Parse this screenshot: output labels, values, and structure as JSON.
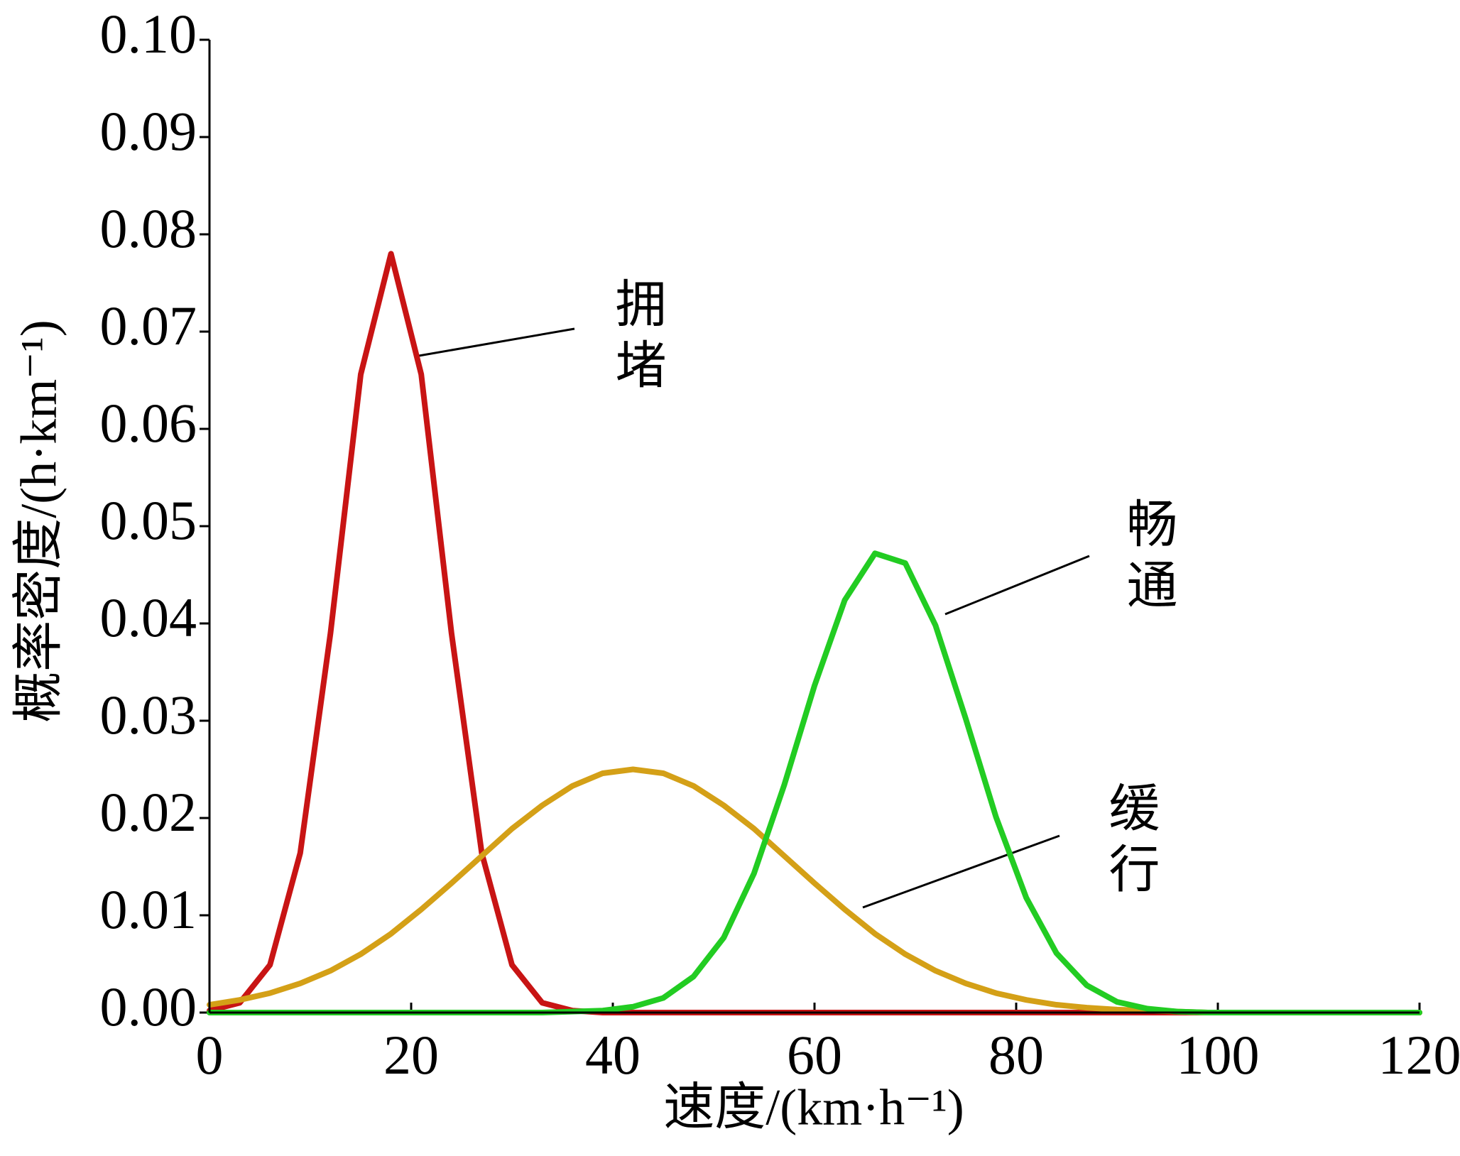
{
  "chart_data": {
    "type": "line",
    "xlabel": "速度/(km·h⁻¹)",
    "ylabel": "概率密度/(h·km⁻¹)",
    "x": [
      0,
      3,
      6,
      9,
      12,
      15,
      18,
      21,
      24,
      27,
      30,
      33,
      36,
      39,
      42,
      45,
      48,
      51,
      54,
      57,
      60,
      63,
      66,
      69,
      72,
      75,
      78,
      81,
      84,
      87,
      90,
      93,
      96,
      99,
      102,
      105,
      108,
      111,
      114,
      117,
      120
    ],
    "series": [
      {
        "name": "拥堵",
        "color": "#c81414",
        "values": [
          0.0002,
          0.001,
          0.0049,
          0.0164,
          0.039,
          0.0656,
          0.078,
          0.0656,
          0.039,
          0.0164,
          0.0049,
          0.001,
          0.0002,
          0,
          0,
          0,
          0,
          0,
          0,
          0,
          0,
          0,
          0,
          0,
          0,
          0,
          0,
          0,
          0,
          0,
          0,
          0,
          0,
          0,
          0,
          0,
          0,
          0,
          0,
          0,
          0
        ]
      },
      {
        "name": "缓行",
        "color": "#d4a017",
        "values": [
          0.0008,
          0.0013,
          0.002,
          0.003,
          0.0043,
          0.006,
          0.0081,
          0.0106,
          0.0133,
          0.0161,
          0.0189,
          0.0213,
          0.0233,
          0.0246,
          0.025,
          0.0246,
          0.0233,
          0.0213,
          0.0189,
          0.0161,
          0.0133,
          0.0106,
          0.0081,
          0.006,
          0.0043,
          0.003,
          0.002,
          0.0013,
          0.0008,
          0.0005,
          0.0003,
          0.0002,
          0.0001,
          0,
          0,
          0,
          0,
          0,
          0,
          0,
          0
        ]
      },
      {
        "name": "畅通",
        "color": "#22cc22",
        "values": [
          0,
          0,
          0,
          0,
          0,
          0,
          0,
          0,
          0,
          0,
          0,
          0,
          0.0001,
          0.0002,
          0.0006,
          0.0015,
          0.0037,
          0.0077,
          0.0143,
          0.0234,
          0.0336,
          0.0424,
          0.0472,
          0.0462,
          0.0398,
          0.0302,
          0.0201,
          0.0118,
          0.0061,
          0.0028,
          0.0011,
          0.0004,
          0.0001,
          0,
          0,
          0,
          0,
          0,
          0,
          0,
          0
        ]
      }
    ],
    "xlim": [
      0,
      120
    ],
    "xticks": [
      0,
      20,
      40,
      60,
      80,
      100,
      120
    ],
    "ylim": [
      0,
      0.1
    ],
    "yticks": [
      {
        "value": 0,
        "label": "0.00"
      },
      {
        "value": 0.01,
        "label": "0.01"
      },
      {
        "value": 0.02,
        "label": "0.02"
      },
      {
        "value": 0.03,
        "label": "0.03"
      },
      {
        "value": 0.04,
        "label": "0.04"
      },
      {
        "value": 0.05,
        "label": "0.05"
      },
      {
        "value": 0.06,
        "label": "0.06"
      },
      {
        "value": 0.07,
        "label": "0.07"
      },
      {
        "value": 0.08,
        "label": "0.08"
      },
      {
        "value": 0.09,
        "label": "0.09"
      },
      {
        "value": 0.1,
        "label": "0.10"
      }
    ]
  }
}
